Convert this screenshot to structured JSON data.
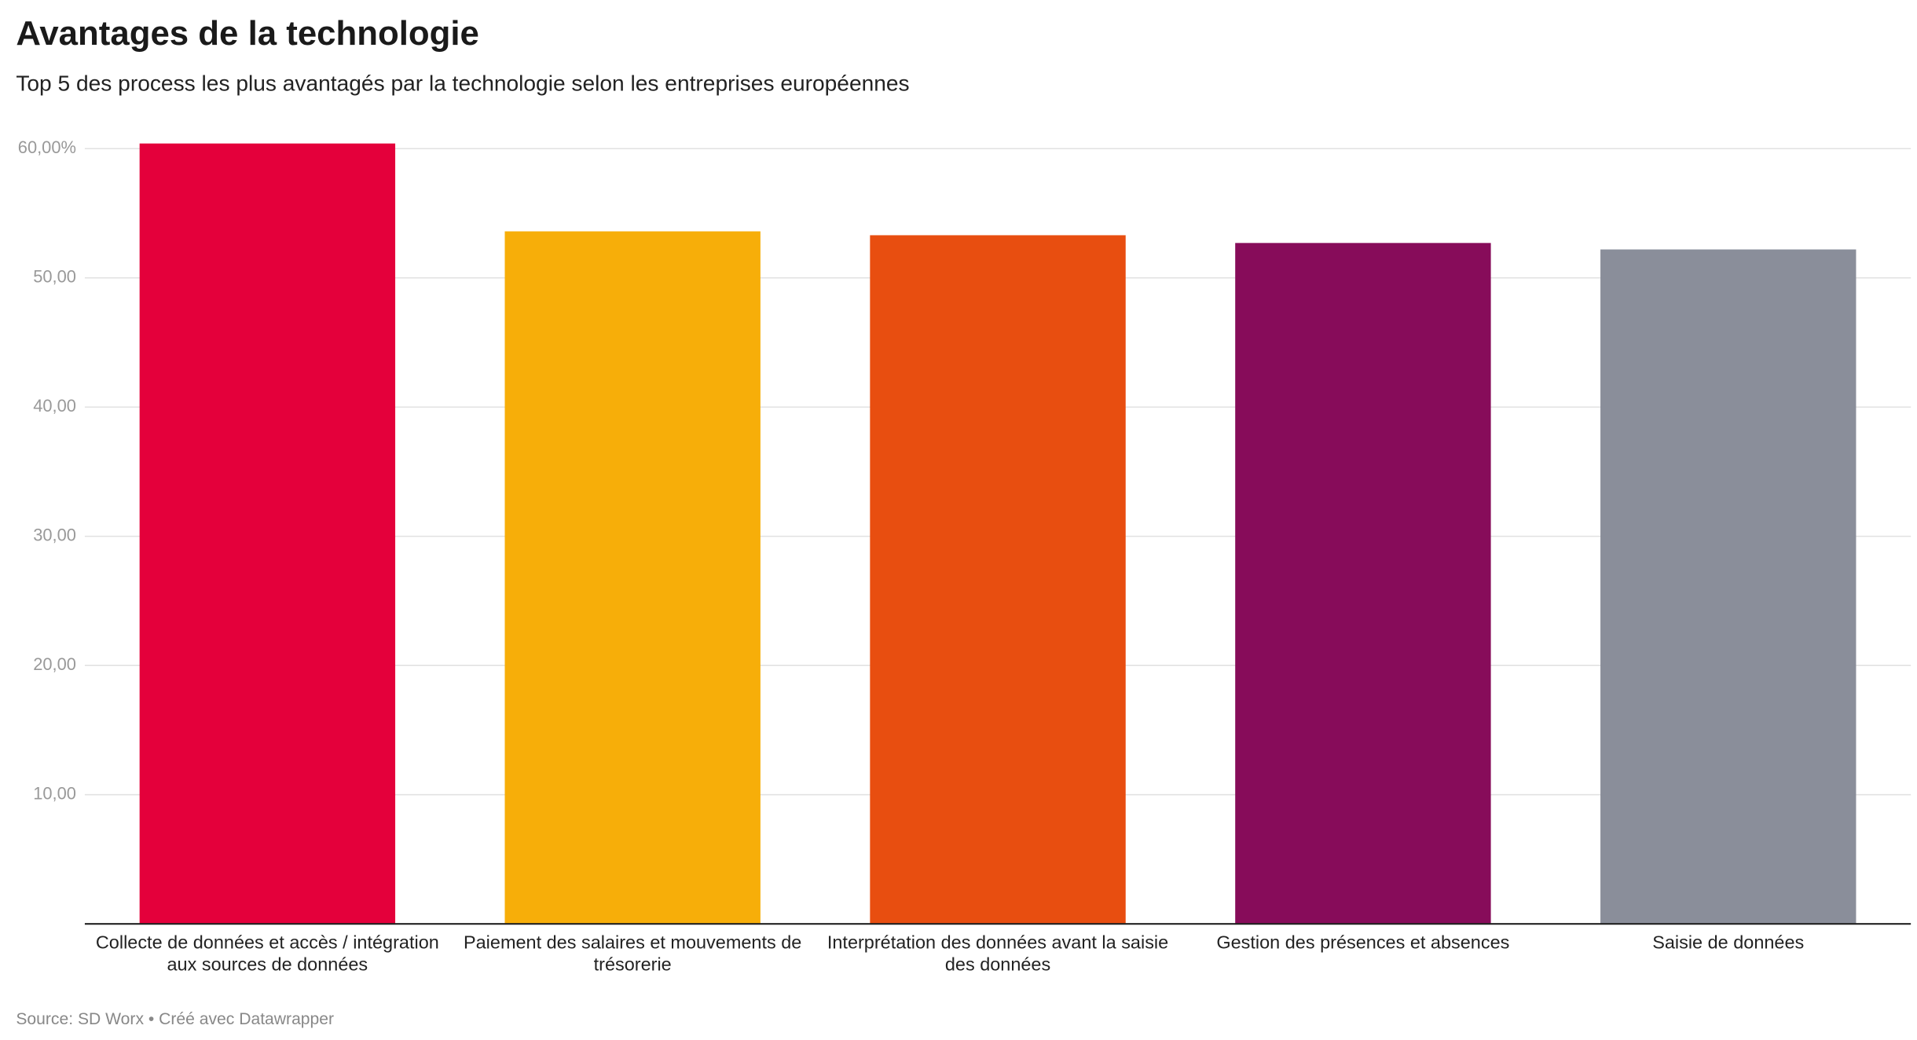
{
  "chart_data": {
    "type": "bar",
    "title": "Avantages de la technologie",
    "subtitle": "Top 5 des process les plus avantagés par la technologie selon les entreprises européennes",
    "source": "Source: SD Worx • Créé avec Datawrapper",
    "categories": [
      "Collecte de données et accès / intégration aux sources de données",
      "Paiement des salaires et mouvements de trésorerie",
      "Interprétation des données avant la saisie des données",
      "Gestion des présences et absences",
      "Saisie de données"
    ],
    "values": [
      60.4,
      53.6,
      53.3,
      52.7,
      52.2
    ],
    "colors": [
      "#e4003b",
      "#f7ae09",
      "#e84e10",
      "#870c5a",
      "#8a8e9a"
    ],
    "ylim": [
      0,
      60
    ],
    "yticks": [
      {
        "value": 10,
        "label": "10,00"
      },
      {
        "value": 20,
        "label": "20,00"
      },
      {
        "value": 30,
        "label": "30,00"
      },
      {
        "value": 40,
        "label": "40,00"
      },
      {
        "value": 50,
        "label": "50,00"
      },
      {
        "value": 60,
        "label": "60,00%"
      }
    ],
    "grid": true
  }
}
